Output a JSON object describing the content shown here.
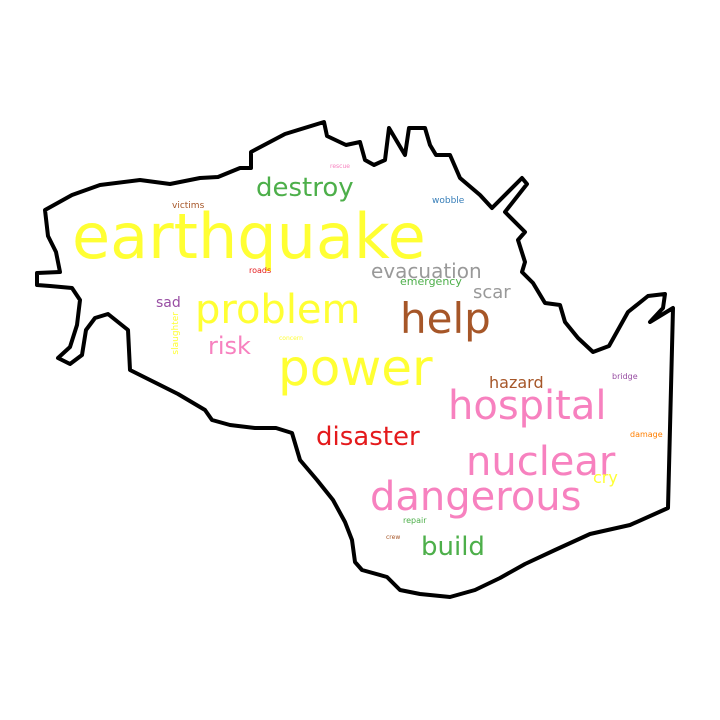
{
  "words": [
    {
      "text": "earthquake",
      "color": "#ffff33"
    },
    {
      "text": "power",
      "color": "#ffff33"
    },
    {
      "text": "problem",
      "color": "#ffff33"
    },
    {
      "text": "help",
      "color": "#a65628"
    },
    {
      "text": "hospital",
      "color": "#f781bf"
    },
    {
      "text": "nuclear",
      "color": "#f781bf"
    },
    {
      "text": "dangerous",
      "color": "#f781bf"
    },
    {
      "text": "destroy",
      "color": "#4daf4a"
    },
    {
      "text": "disaster",
      "color": "#e41a1c"
    },
    {
      "text": "build",
      "color": "#4daf4a"
    },
    {
      "text": "evacuation",
      "color": "#999999"
    },
    {
      "text": "risk",
      "color": "#f781bf"
    },
    {
      "text": "scar",
      "color": "#999999"
    },
    {
      "text": "hazard",
      "color": "#a65628"
    },
    {
      "text": "sad",
      "color": "#984ea3"
    },
    {
      "text": "cry",
      "color": "#ffff33"
    },
    {
      "text": "emergency",
      "color": "#4daf4a"
    },
    {
      "text": "victims",
      "color": "#a65628"
    },
    {
      "text": "roads",
      "color": "#e41a1c"
    },
    {
      "text": "wobble",
      "color": "#377eb8"
    },
    {
      "text": "bridge",
      "color": "#984ea3"
    },
    {
      "text": "damage",
      "color": "#ff7f00"
    },
    {
      "text": "repair",
      "color": "#4daf4a"
    },
    {
      "text": "crew",
      "color": "#a65628"
    },
    {
      "text": "rescue",
      "color": "#f781bf"
    },
    {
      "text": "concern",
      "color": "#ffff33"
    },
    {
      "text": "slaughter",
      "color": "#ffff33"
    }
  ],
  "outline_color": "#000000",
  "background": "#ffffff"
}
